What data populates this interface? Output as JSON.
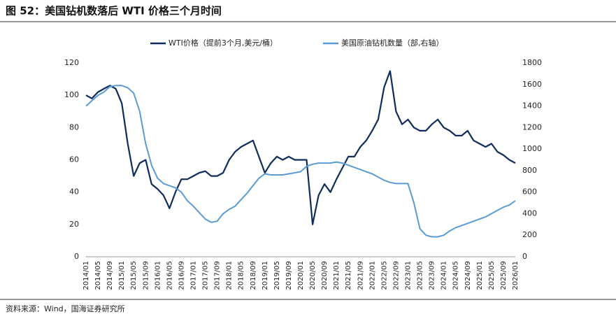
{
  "chart_data": {
    "type": "line",
    "title": "图 52：美国钻机数落后 WTI 价格三个月时间",
    "source": "资料来源：Wind，国海证券研究所",
    "x": [
      "2014/01",
      "2014/03",
      "2014/05",
      "2014/07",
      "2014/09",
      "2014/11",
      "2015/01",
      "2015/03",
      "2015/05",
      "2015/07",
      "2015/09",
      "2015/11",
      "2016/01",
      "2016/03",
      "2016/05",
      "2016/07",
      "2016/09",
      "2016/11",
      "2017/01",
      "2017/03",
      "2017/05",
      "2017/07",
      "2017/09",
      "2017/11",
      "2018/01",
      "2018/03",
      "2018/05",
      "2018/07",
      "2018/09",
      "2018/11",
      "2019/01",
      "2019/03",
      "2019/05",
      "2019/07",
      "2019/09",
      "2019/11",
      "2020/01",
      "2020/03",
      "2020/05",
      "2020/07",
      "2020/09",
      "2020/11",
      "2021/01",
      "2021/03",
      "2021/05",
      "2021/07",
      "2021/09",
      "2021/11",
      "2022/01",
      "2022/03",
      "2022/05",
      "2022/07",
      "2022/09",
      "2022/11",
      "2023/01",
      "2023/03",
      "2023/05",
      "2023/07",
      "2023/09",
      "2023/11",
      "2024/01",
      "2024/03",
      "2024/05",
      "2024/07",
      "2024/09",
      "2024/11",
      "2025/01",
      "2025/03",
      "2025/05",
      "2025/07",
      "2025/09",
      "2025/11",
      "2026/01"
    ],
    "xticks": [
      "2014/01",
      "2014/05",
      "2014/09",
      "2015/01",
      "2015/05",
      "2015/09",
      "2016/01",
      "2016/05",
      "2016/09",
      "2017/01",
      "2017/05",
      "2017/09",
      "2018/01",
      "2018/05",
      "2018/09",
      "2019/01",
      "2019/05",
      "2019/09",
      "2020/01",
      "2020/05",
      "2020/09",
      "2021/01",
      "2021/05",
      "2021/09",
      "2022/01",
      "2022/05",
      "2022/09",
      "2023/01",
      "2023/05",
      "2023/09",
      "2024/01",
      "2024/05",
      "2024/09",
      "2025/01",
      "2025/05",
      "2025/09",
      "2026/01"
    ],
    "series": [
      {
        "name": "WTI价格（提前3个月,美元/桶）",
        "color": "#0e2d5c",
        "axis": "y",
        "values": [
          100,
          98,
          102,
          104,
          106,
          104,
          95,
          70,
          50,
          58,
          60,
          45,
          42,
          38,
          30,
          40,
          48,
          48,
          50,
          52,
          53,
          50,
          50,
          52,
          60,
          65,
          68,
          70,
          72,
          62,
          52,
          58,
          62,
          60,
          62,
          60,
          60,
          60,
          20,
          38,
          45,
          40,
          48,
          55,
          62,
          62,
          68,
          72,
          78,
          85,
          105,
          115,
          90,
          82,
          85,
          80,
          78,
          78,
          82,
          85,
          80,
          78,
          75,
          75,
          78,
          72,
          70,
          68,
          70,
          65,
          63,
          60,
          58
        ]
      },
      {
        "name": "美国原油钻机数量（部,右轴）",
        "color": "#5b9bd5",
        "axis": "y2",
        "values": [
          1400,
          1450,
          1500,
          1530,
          1580,
          1590,
          1590,
          1570,
          1520,
          1350,
          1050,
          850,
          730,
          680,
          660,
          640,
          600,
          520,
          470,
          410,
          350,
          320,
          330,
          400,
          440,
          470,
          530,
          590,
          660,
          730,
          770,
          760,
          760,
          760,
          770,
          780,
          790,
          840,
          860,
          870,
          870,
          870,
          880,
          870,
          850,
          830,
          810,
          790,
          770,
          740,
          710,
          690,
          680,
          680,
          680,
          500,
          260,
          200,
          185,
          185,
          200,
          240,
          270,
          290,
          310,
          330,
          350,
          370,
          400,
          430,
          460,
          480,
          520
        ]
      }
    ],
    "ylim": [
      0,
      120
    ],
    "yticks": [
      0,
      20,
      40,
      60,
      80,
      100,
      120
    ],
    "y2lim": [
      0,
      1800
    ],
    "y2ticks": [
      0,
      200,
      400,
      600,
      800,
      1000,
      1200,
      1400,
      1600,
      1800
    ],
    "grid": false
  }
}
